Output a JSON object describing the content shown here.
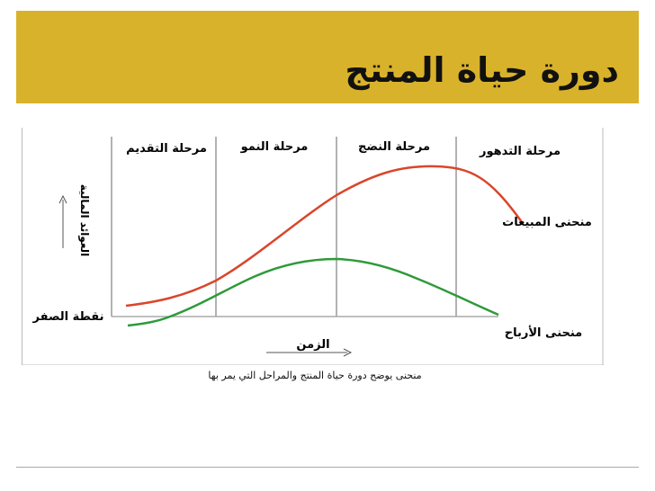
{
  "slide": {
    "title": "دورة حياة المنتج",
    "caption": "منحنى يوضح دورة حياة المنتج والمراحل التي يمر بها"
  },
  "diagram": {
    "stages": [
      "مرحلة التقديم",
      "مرحلة النمو",
      "مرحلة النضج",
      "مرحلة التدهور"
    ],
    "y_axis_label": "العوائد المالية",
    "x_axis_label": "الزمن",
    "zero_label": "نقطة الصفر",
    "sales_label": "منحنى المبيعات",
    "profits_label": "منحنى الأرباح",
    "colors": {
      "sales": "#d9462a",
      "profits": "#2e9a3a",
      "dividers": "#999999",
      "accent": "#d9b22b"
    }
  }
}
